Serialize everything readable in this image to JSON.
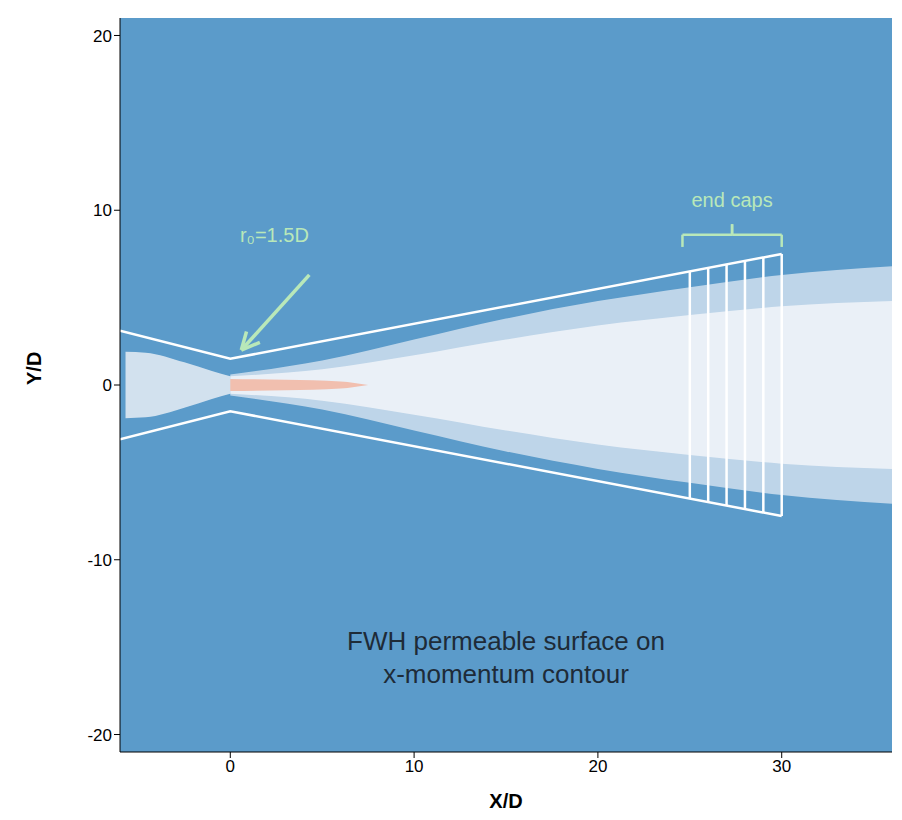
{
  "chart_data": {
    "type": "contour",
    "xlabel": "X/D",
    "ylabel": "Y/D",
    "xlim": [
      -6,
      36
    ],
    "ylim": [
      -21,
      21
    ],
    "xticks": [
      0,
      10,
      20,
      30
    ],
    "yticks": [
      -20,
      -10,
      0,
      10,
      20
    ],
    "grid": false,
    "tick_labels": true,
    "series": [
      {
        "type": "area",
        "color": "#dfe9f2",
        "x": [
          -5.7,
          -4.6,
          -2.5,
          -1,
          0
        ],
        "low": [
          -1.9,
          -1.85,
          -1.3,
          -0.8,
          -0.5
        ],
        "high": [
          1.9,
          1.85,
          1.3,
          0.8,
          0.5
        ]
      },
      {
        "type": "area",
        "color": "#c9dcec",
        "x": [
          0,
          5,
          10,
          15,
          20,
          25,
          30,
          36
        ],
        "low": [
          -0.6,
          -1.4,
          -2.6,
          -3.8,
          -4.8,
          -5.6,
          -6.3,
          -6.8
        ],
        "high": [
          0.6,
          1.4,
          2.6,
          3.8,
          4.8,
          5.6,
          6.3,
          6.8
        ]
      },
      {
        "type": "area",
        "color": "#eef3f8",
        "x": [
          0,
          5,
          10,
          15,
          20,
          25,
          30,
          36
        ],
        "low": [
          -0.5,
          -0.9,
          -1.7,
          -2.6,
          -3.4,
          -4.0,
          -4.5,
          -4.8
        ],
        "high": [
          0.5,
          0.9,
          1.7,
          2.6,
          3.4,
          4.0,
          4.5,
          4.8
        ]
      },
      {
        "type": "area",
        "color": "#f2b9a6",
        "x": [
          0,
          3,
          6,
          7.5
        ],
        "low": [
          -0.35,
          -0.3,
          -0.2,
          0
        ],
        "high": [
          0.35,
          0.3,
          0.2,
          0
        ]
      },
      {
        "type": "line",
        "color": "#ffffff",
        "x": [
          -6,
          0,
          30
        ],
        "values": [
          3.1,
          1.5,
          7.5
        ]
      },
      {
        "type": "line",
        "color": "#ffffff",
        "x": [
          -6,
          0,
          30
        ],
        "values": [
          -3.1,
          -1.5,
          -7.5
        ]
      },
      {
        "type": "line",
        "color": "#ffffff",
        "x": [
          25,
          25
        ],
        "values": [
          -6.5,
          6.5
        ]
      },
      {
        "type": "line",
        "color": "#ffffff",
        "x": [
          26,
          26
        ],
        "values": [
          -6.7,
          6.7
        ]
      },
      {
        "type": "line",
        "color": "#ffffff",
        "x": [
          27,
          27
        ],
        "values": [
          -6.9,
          6.9
        ]
      },
      {
        "type": "line",
        "color": "#ffffff",
        "x": [
          28,
          28
        ],
        "values": [
          -7.1,
          7.1
        ]
      },
      {
        "type": "line",
        "color": "#ffffff",
        "x": [
          29,
          29
        ],
        "values": [
          -7.3,
          7.3
        ]
      },
      {
        "type": "line",
        "color": "#ffffff",
        "x": [
          30,
          30
        ],
        "values": [
          -7.5,
          7.5
        ]
      }
    ],
    "annotations": [
      {
        "text": "end caps",
        "x": 27.3,
        "y": 10.6,
        "color": "#b9e8b9",
        "bracket": [
          [
            24.6,
            7.9
          ],
          [
            24.6,
            8.6
          ],
          [
            27.3,
            8.6
          ],
          [
            27.3,
            9.2
          ],
          [
            27.3,
            8.6
          ],
          [
            30,
            8.6
          ],
          [
            30,
            7.9
          ]
        ]
      },
      {
        "text": "r₀=1.5D",
        "x": 2.4,
        "y": 8.6,
        "color": "#b9e8b9",
        "arrow": [
          [
            4.3,
            6.3
          ],
          [
            0.6,
            2.0
          ]
        ]
      },
      {
        "text": "FWH permeable surface on x-momentum contour",
        "x": 15,
        "y": -15.6,
        "color": "#1e2b38"
      }
    ]
  }
}
